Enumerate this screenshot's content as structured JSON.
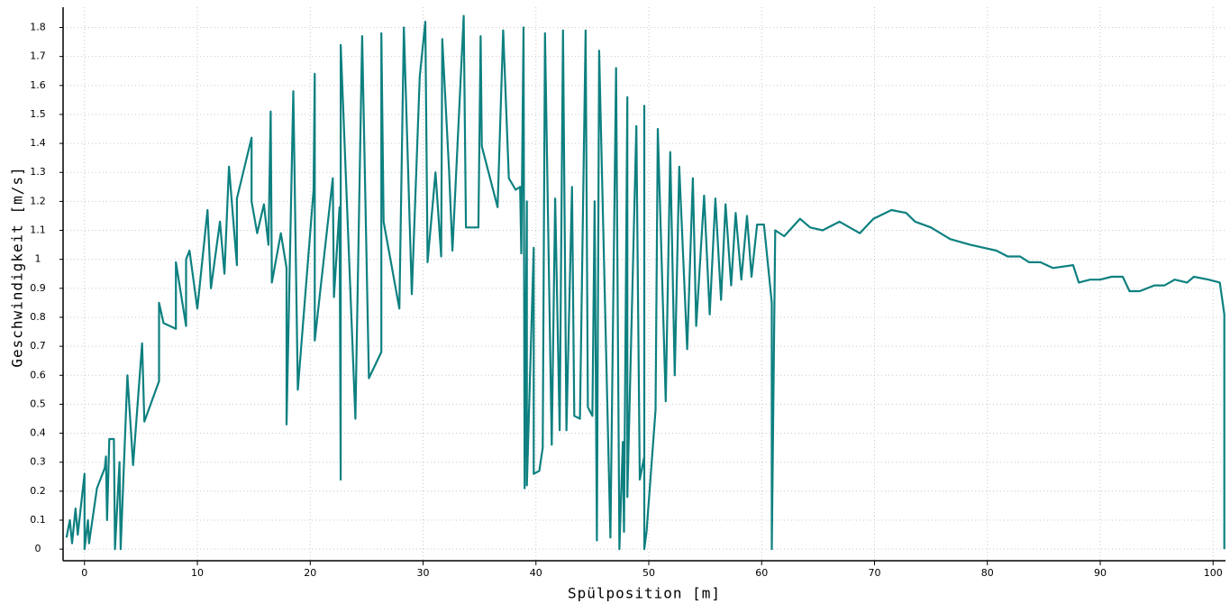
{
  "chart_data": {
    "type": "line",
    "x_label": "Spülposition [m]",
    "y_label": "Geschwindigkeit [m/s]",
    "color": "#0e8080",
    "xlim": [
      -1.9,
      101.1
    ],
    "ylim": [
      -0.04,
      1.87
    ],
    "xticks": [
      0,
      10,
      20,
      30,
      40,
      50,
      60,
      70,
      80,
      90,
      100
    ],
    "yticks": [
      0,
      0.1,
      0.2,
      0.3,
      0.4,
      0.5,
      0.6,
      0.7,
      0.8,
      0.9,
      1,
      1.1,
      1.2,
      1.3,
      1.4,
      1.5,
      1.6,
      1.7,
      1.8
    ],
    "grid": true,
    "x": [
      -1.6,
      -1.3,
      -1.1,
      -0.8,
      -0.6,
      0,
      0,
      0.3,
      0.4,
      1.1,
      1.8,
      1.9,
      2,
      2.2,
      2.6,
      2.7,
      3.1,
      3.2,
      3.8,
      4.3,
      5.1,
      5.3,
      6.6,
      6.6,
      7,
      8.1,
      8.1,
      9,
      9,
      9.3,
      10,
      10.9,
      11.2,
      12,
      12.4,
      12.8,
      13.5,
      13.5,
      14.8,
      14.8,
      15.3,
      15.9,
      16.3,
      16.5,
      16.6,
      17.4,
      17.9,
      17.9,
      18.5,
      18.9,
      20.3,
      20.4,
      20.4,
      22,
      22.1,
      22.6,
      22.7,
      22.7,
      24,
      24.6,
      25.2,
      26.3,
      26.3,
      26.5,
      27.9,
      28.3,
      29,
      29.7,
      30.2,
      30.4,
      31.1,
      31.6,
      31.7,
      32.3,
      32.6,
      33.6,
      33.8,
      34.9,
      35.1,
      35.2,
      36.6,
      37.1,
      37.6,
      38.2,
      38.6,
      38.7,
      38.9,
      39,
      39.2,
      39.2,
      39.8,
      39.8,
      40.3,
      40.6,
      40.8,
      41.4,
      41.7,
      42.1,
      42.4,
      42.7,
      43.2,
      43.4,
      43.9,
      44.4,
      44.6,
      45,
      45.2,
      45.4,
      45.6,
      46.6,
      47.1,
      47.4,
      47.7,
      47.8,
      48.1,
      48.1,
      48.9,
      49.2,
      49.6,
      49.6,
      49.6,
      49.8,
      50.6,
      50.8,
      51.5,
      51.9,
      52.3,
      52.7,
      53.4,
      53.9,
      54.2,
      54.9,
      55.4,
      55.9,
      56.4,
      56.8,
      57.3,
      57.7,
      58.2,
      58.7,
      59.1,
      59.6,
      60.2,
      60.9,
      60.9,
      61.2,
      62,
      63.4,
      64.3,
      65.4,
      66.9,
      68.7,
      69.9,
      71.5,
      72.8,
      73.6,
      75,
      76.7,
      78.5,
      80.8,
      81.8,
      82.9,
      83.7,
      84.7,
      85.8,
      87.6,
      88.1,
      89.1,
      90,
      91,
      92,
      92.6,
      93.5,
      94.8,
      95.7,
      96.6,
      97.7,
      98.3,
      99.6,
      100.6,
      101,
      101
    ],
    "values": [
      0.04,
      0.1,
      0.02,
      0.14,
      0.05,
      0.26,
      0,
      0.1,
      0.02,
      0.21,
      0.28,
      0.32,
      0.1,
      0.38,
      0.38,
      0,
      0.3,
      0,
      0.6,
      0.29,
      0.71,
      0.44,
      0.58,
      0.85,
      0.78,
      0.76,
      0.99,
      0.77,
      1.0,
      1.03,
      0.83,
      1.17,
      0.9,
      1.13,
      0.95,
      1.32,
      0.98,
      1.21,
      1.42,
      1.2,
      1.09,
      1.19,
      1.05,
      1.51,
      0.92,
      1.09,
      0.97,
      0.43,
      1.58,
      0.55,
      1.24,
      1.64,
      0.72,
      1.28,
      0.87,
      1.18,
      0.24,
      1.74,
      0.45,
      1.77,
      0.59,
      0.68,
      1.78,
      1.13,
      0.83,
      1.8,
      0.88,
      1.63,
      1.82,
      0.99,
      1.3,
      1.01,
      1.76,
      1.31,
      1.03,
      1.84,
      1.11,
      1.11,
      1.77,
      1.39,
      1.18,
      1.79,
      1.28,
      1.24,
      1.25,
      1.02,
      1.8,
      0.21,
      1.2,
      0.22,
      1.04,
      0.26,
      0.27,
      0.35,
      1.78,
      0.36,
      1.21,
      0.41,
      1.79,
      0.41,
      1.25,
      0.46,
      0.45,
      1.79,
      0.49,
      0.46,
      1.2,
      0.03,
      1.72,
      0.04,
      1.66,
      0,
      0.37,
      0.06,
      1.56,
      0.18,
      1.46,
      0.24,
      0.32,
      1.53,
      0,
      0.06,
      0.48,
      1.45,
      0.51,
      1.37,
      0.6,
      1.32,
      0.69,
      1.28,
      0.77,
      1.22,
      0.81,
      1.21,
      0.86,
      1.19,
      0.91,
      1.16,
      0.93,
      1.15,
      0.94,
      1.12,
      1.12,
      0.85,
      0,
      1.1,
      1.08,
      1.14,
      1.11,
      1.1,
      1.13,
      1.09,
      1.14,
      1.17,
      1.16,
      1.13,
      1.11,
      1.07,
      1.05,
      1.03,
      1.01,
      1.01,
      0.99,
      0.99,
      0.97,
      0.98,
      0.92,
      0.93,
      0.93,
      0.94,
      0.94,
      0.89,
      0.89,
      0.91,
      0.91,
      0.93,
      0.92,
      0.94,
      0.93,
      0.92,
      0.81,
      0
    ]
  }
}
